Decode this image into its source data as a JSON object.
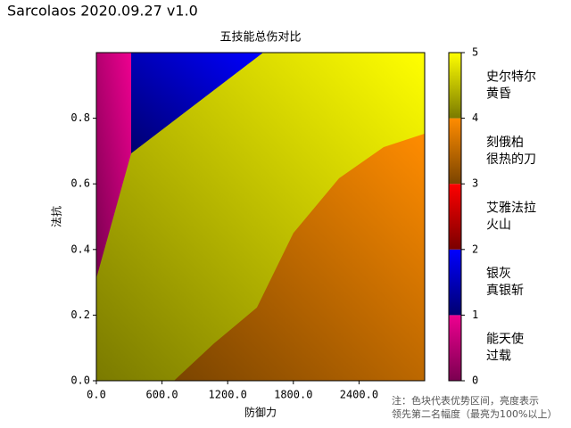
{
  "header": {
    "title": "Sarcolaos 2020.09.27 v1.0"
  },
  "chart_data": {
    "type": "region",
    "title": "五技能总伤对比",
    "x_label": "防御力",
    "y_label": "法抗",
    "xlim": [
      0,
      3000
    ],
    "ylim": [
      0,
      1
    ],
    "xticks": [
      {
        "value": 0,
        "label": "0.0"
      },
      {
        "value": 600,
        "label": "600.0"
      },
      {
        "value": 1200,
        "label": "1200.0"
      },
      {
        "value": 1800,
        "label": "1800.0"
      },
      {
        "value": 2400,
        "label": "2400.0"
      }
    ],
    "yticks": [
      {
        "value": 0,
        "label": "0.0"
      },
      {
        "value": 0.2,
        "label": "0.2"
      },
      {
        "value": 0.4,
        "label": "0.4"
      },
      {
        "value": 0.6,
        "label": "0.6"
      },
      {
        "value": 0.8,
        "label": "0.8"
      }
    ],
    "background_class": 4,
    "classes": [
      {
        "label": [
          "能天使",
          "过载"
        ],
        "colors": [
          "#7a0050",
          "#ee0090"
        ]
      },
      {
        "label": [
          "银灰",
          "真银斩"
        ],
        "colors": [
          "#000070",
          "#0000ff"
        ]
      },
      {
        "label": [
          "艾雅法拉",
          "火山"
        ],
        "colors": [
          "#7a0000",
          "#ff0000"
        ]
      },
      {
        "label": [
          "刻俄柏",
          "很热的刀"
        ],
        "colors": [
          "#7a4400",
          "#ff8c00"
        ]
      },
      {
        "label": [
          "史尔特尔",
          "黄昏"
        ],
        "colors": [
          "#7a7a00",
          "#ffff00"
        ]
      }
    ],
    "regions": [
      {
        "class": 0,
        "points": [
          [
            0,
            0.3125
          ],
          [
            0,
            1
          ],
          [
            318,
            1
          ],
          [
            318,
            0.693
          ]
        ]
      },
      {
        "class": 1,
        "points": [
          [
            318,
            0.693
          ],
          [
            318,
            1
          ],
          [
            1524,
            1
          ]
        ]
      },
      {
        "class": 3,
        "points": [
          [
            709,
            0
          ],
          [
            1076,
            0.114
          ],
          [
            1467,
            0.223
          ],
          [
            1800,
            0.45
          ],
          [
            2217,
            0.617
          ],
          [
            2625,
            0.712
          ],
          [
            3000,
            0.753
          ],
          [
            3000,
            0
          ]
        ]
      }
    ],
    "colorbar_lim": [
      0,
      5
    ],
    "colorbar_ticks": [
      0,
      1,
      2,
      3,
      4,
      5
    ],
    "note": [
      "注：色块代表优势区间，亮度表示",
      "领先第二名幅度（最亮为100%以上）"
    ]
  }
}
